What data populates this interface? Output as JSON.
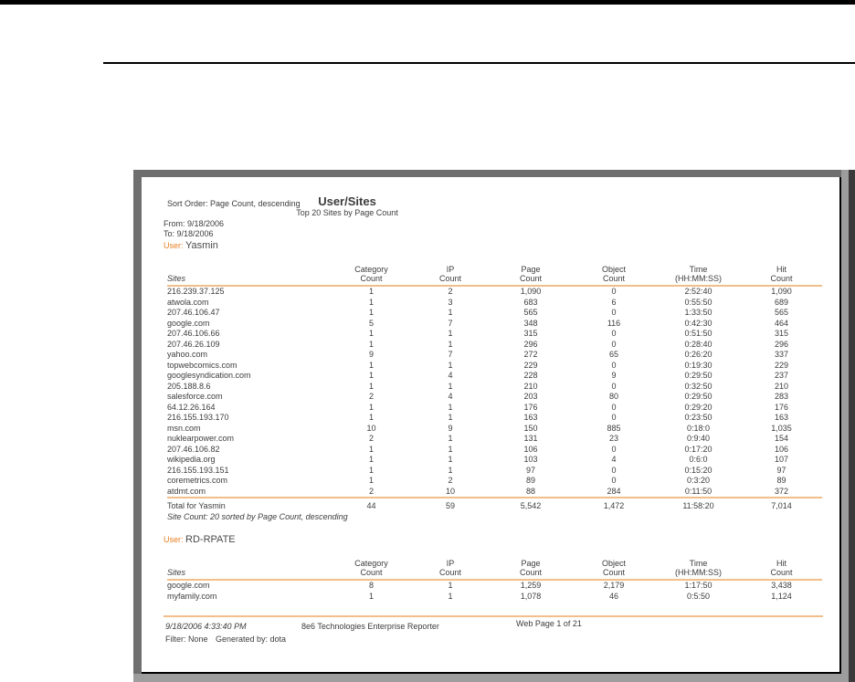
{
  "report": {
    "sort_order": "Sort Order: Page Count, descending",
    "title": "User/Sites",
    "subtitle": "Top 20 Sites by Page Count",
    "from": "From: 9/18/2006",
    "to": "To: 9/18/2006",
    "user_label": "User:",
    "user1": "Yasmin",
    "user2": "RD-RPATE"
  },
  "columns": [
    {
      "l1": "Sites",
      "l2": ""
    },
    {
      "l1": "Category",
      "l2": "Count"
    },
    {
      "l1": "IP",
      "l2": "Count"
    },
    {
      "l1": "Page",
      "l2": "Count"
    },
    {
      "l1": "Object",
      "l2": "Count"
    },
    {
      "l1": "Time",
      "l2": "(HH:MM:SS)"
    },
    {
      "l1": "Hit",
      "l2": "Count"
    }
  ],
  "table1": {
    "rows": [
      [
        "216.239.37.125",
        "1",
        "2",
        "1,090",
        "0",
        "2:52:40",
        "1,090"
      ],
      [
        "atwola.com",
        "1",
        "3",
        "683",
        "6",
        "0:55:50",
        "689"
      ],
      [
        "207.46.106.47",
        "1",
        "1",
        "565",
        "0",
        "1:33:50",
        "565"
      ],
      [
        "google.com",
        "5",
        "7",
        "348",
        "116",
        "0:42:30",
        "464"
      ],
      [
        "207.46.106.66",
        "1",
        "1",
        "315",
        "0",
        "0:51:50",
        "315"
      ],
      [
        "207.46.26.109",
        "1",
        "1",
        "296",
        "0",
        "0:28:40",
        "296"
      ],
      [
        "yahoo.com",
        "9",
        "7",
        "272",
        "65",
        "0:26:20",
        "337"
      ],
      [
        "topwebcomics.com",
        "1",
        "1",
        "229",
        "0",
        "0:19:30",
        "229"
      ],
      [
        "googlesyndication.com",
        "1",
        "4",
        "228",
        "9",
        "0:29:50",
        "237"
      ],
      [
        "205.188.8.6",
        "1",
        "1",
        "210",
        "0",
        "0:32:50",
        "210"
      ],
      [
        "salesforce.com",
        "2",
        "4",
        "203",
        "80",
        "0:29:50",
        "283"
      ],
      [
        "64.12.26.164",
        "1",
        "1",
        "176",
        "0",
        "0:29:20",
        "176"
      ],
      [
        "216.155.193.170",
        "1",
        "1",
        "163",
        "0",
        "0:23:50",
        "163"
      ],
      [
        "msn.com",
        "10",
        "9",
        "150",
        "885",
        "0:18:0",
        "1,035"
      ],
      [
        "nuklearpower.com",
        "2",
        "1",
        "131",
        "23",
        "0:9:40",
        "154"
      ],
      [
        "207.46.106.82",
        "1",
        "1",
        "106",
        "0",
        "0:17:20",
        "106"
      ],
      [
        "wikipedia.org",
        "1",
        "1",
        "103",
        "4",
        "0:6:0",
        "107"
      ],
      [
        "216.155.193.151",
        "1",
        "1",
        "97",
        "0",
        "0:15:20",
        "97"
      ],
      [
        "coremetrics.com",
        "1",
        "2",
        "89",
        "0",
        "0:3:20",
        "89"
      ],
      [
        "atdmt.com",
        "2",
        "10",
        "88",
        "284",
        "0:11:50",
        "372"
      ]
    ],
    "total_label": "Total for Yasmin",
    "total": [
      "44",
      "59",
      "5,542",
      "1,472",
      "11:58:20",
      "7,014"
    ],
    "note": "Site Count: 20 sorted by Page Count, descending"
  },
  "table2": {
    "rows": [
      [
        "google.com",
        "8",
        "1",
        "1,259",
        "2,179",
        "1:17:50",
        "3,438"
      ],
      [
        "myfamily.com",
        "1",
        "1",
        "1,078",
        "46",
        "0:5:50",
        "1,124"
      ]
    ]
  },
  "footer": {
    "datetime": "9/18/2006 4:33:40 PM",
    "product": "8e6 Technologies Enterprise Reporter",
    "page_info": "Web Page 1 of 21",
    "filter": "Filter: None",
    "generated_by": "Generated by: dota"
  },
  "colors": {
    "accent_orange": "#E87E21",
    "rule_orange": "#F2BE8A",
    "frame_gray": "#6F6F6F",
    "text": "#3C3C3C"
  }
}
